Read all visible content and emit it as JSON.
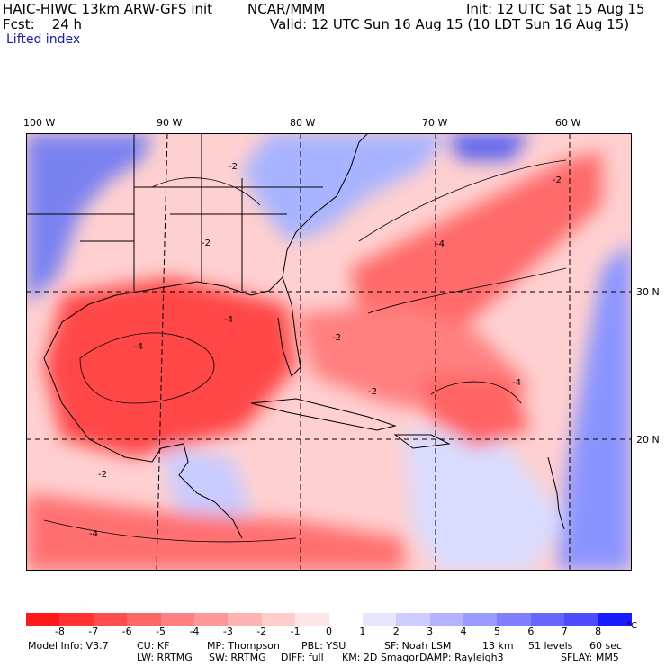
{
  "header": {
    "title": "HAIC-HIWC 13km ARW-GFS init",
    "center": "NCAR/MMM",
    "init": "Init: 12 UTC Sat 15 Aug 15",
    "fcst": "Fcst:    24 h",
    "valid": "Valid: 12 UTC Sun 16 Aug 15 (10 LDT Sun 16 Aug 15)",
    "field": "Lifted index"
  },
  "axes": {
    "lon_labels": [
      "100 W",
      "90 W",
      "80 W",
      "70 W",
      "60 W"
    ],
    "lat_labels": [
      "30 N",
      "20 N"
    ]
  },
  "map": {
    "contour_labels": [
      "-2",
      "-2",
      "-4",
      "-2",
      "-4",
      "-2",
      "-2",
      "-4",
      "-4",
      "-2",
      "-4"
    ]
  },
  "colorbar": {
    "ticks": [
      "-8",
      "-7",
      "-6",
      "-5",
      "-4",
      "-3",
      "-2",
      "-1",
      "0",
      "1",
      "2",
      "3",
      "4",
      "5",
      "6",
      "7",
      "8"
    ],
    "unit": "°C",
    "colors": [
      "#ff1a1a",
      "#ff3333",
      "#ff4d4d",
      "#ff6666",
      "#ff8080",
      "#ff9999",
      "#ffb3b3",
      "#ffcccc",
      "#ffe6e6",
      "#ffffff",
      "#e6e6ff",
      "#ccccff",
      "#b3b3ff",
      "#9999ff",
      "#8080ff",
      "#6666ff",
      "#4d4dff",
      "#1a1aff"
    ]
  },
  "model_info": {
    "line1": [
      "Model Info: V3.7",
      "CU: KF",
      "MP: Thompson",
      "PBL: YSU",
      "SF: Noah LSM",
      "13 km",
      "51 levels",
      "60 sec"
    ],
    "line2": [
      "LW: RRTMG",
      "SW: RRTMG",
      "DIFF: full",
      "KM: 2D Smagor",
      "DAMP: Rayleigh3",
      "SFLAY: MM5"
    ]
  }
}
